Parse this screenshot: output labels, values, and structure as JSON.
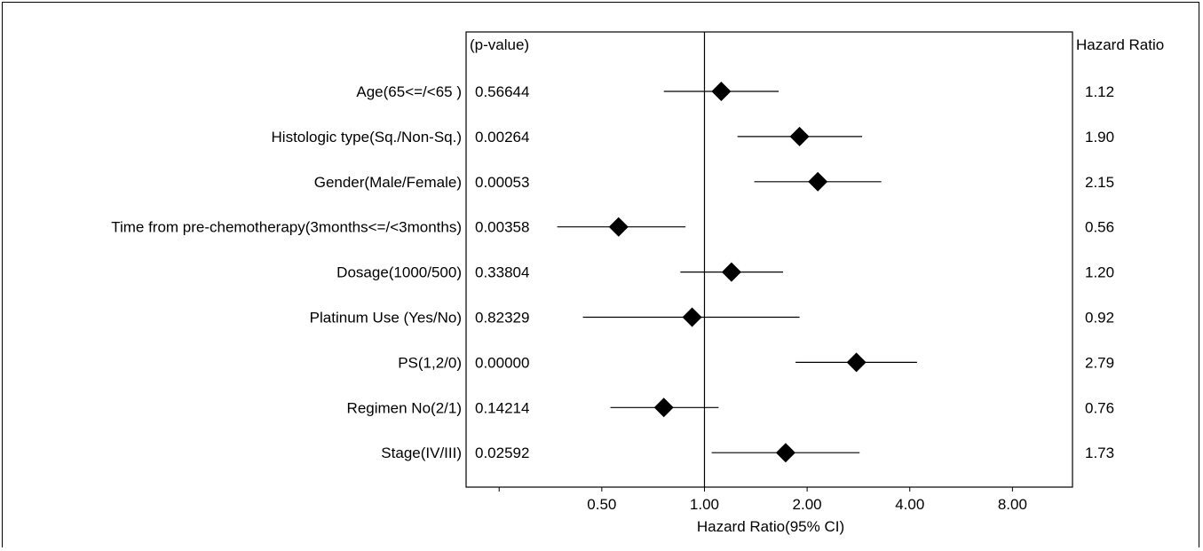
{
  "chart_data": {
    "type": "forest",
    "pvalue_header": "(p-value)",
    "hr_header": "Hazard Ratio",
    "xlabel": "Hazard Ratio(95% CI)",
    "x_scale": "log2",
    "xlim": [
      0.2,
      12.0
    ],
    "reference_line": 1.0,
    "x_ticks": [
      0.25,
      0.5,
      1.0,
      2.0,
      4.0,
      8.0
    ],
    "x_tick_labels": [
      "",
      "0.50",
      "1.00",
      "2.00",
      "4.00",
      "8.00"
    ],
    "rows": [
      {
        "label": "Age(65<=/<65 )",
        "pvalue": "0.56644",
        "hr": 1.12,
        "hr_label": "1.12",
        "ci_low": 0.76,
        "ci_high": 1.65
      },
      {
        "label": "Histologic type(Sq./Non-Sq.)",
        "pvalue": "0.00264",
        "hr": 1.9,
        "hr_label": "1.90",
        "ci_low": 1.25,
        "ci_high": 2.9
      },
      {
        "label": "Gender(Male/Female)",
        "pvalue": "0.00053",
        "hr": 2.15,
        "hr_label": "2.15",
        "ci_low": 1.4,
        "ci_high": 3.3
      },
      {
        "label": "Time from pre-chemotherapy(3months<=/<3months)",
        "pvalue": "0.00358",
        "hr": 0.56,
        "hr_label": "0.56",
        "ci_low": 0.37,
        "ci_high": 0.88
      },
      {
        "label": "Dosage(1000/500)",
        "pvalue": "0.33804",
        "hr": 1.2,
        "hr_label": "1.20",
        "ci_low": 0.85,
        "ci_high": 1.7
      },
      {
        "label": "Platinum Use (Yes/No)",
        "pvalue": "0.82329",
        "hr": 0.92,
        "hr_label": "0.92",
        "ci_low": 0.44,
        "ci_high": 1.9
      },
      {
        "label": "PS(1,2/0)",
        "pvalue": "0.00000",
        "hr": 2.79,
        "hr_label": "2.79",
        "ci_low": 1.85,
        "ci_high": 4.2
      },
      {
        "label": "Regimen No(2/1)",
        "pvalue": "0.14214",
        "hr": 0.76,
        "hr_label": "0.76",
        "ci_low": 0.53,
        "ci_high": 1.1
      },
      {
        "label": "Stage(IV/III)",
        "pvalue": "0.02592",
        "hr": 1.73,
        "hr_label": "1.73",
        "ci_low": 1.05,
        "ci_high": 2.85
      }
    ]
  }
}
